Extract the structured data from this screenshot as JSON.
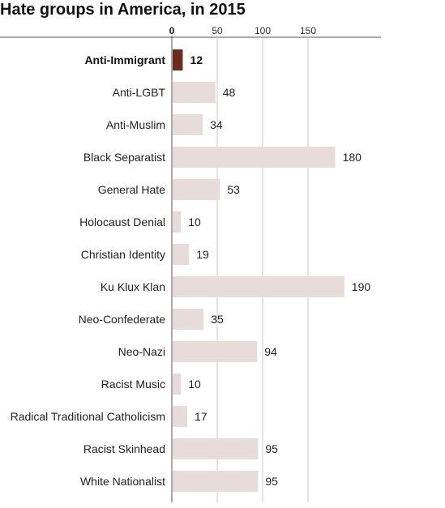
{
  "chart_data": {
    "type": "bar",
    "orientation": "horizontal",
    "title": "Hate groups in America, in 2015",
    "xlabel": "",
    "ylabel": "",
    "xlim": [
      0,
      200
    ],
    "ticks": [
      0,
      50,
      100,
      150
    ],
    "grid": true,
    "highlight": "Anti-Immigrant",
    "colors": {
      "bar": "#e7dcd9",
      "highlight": "#6b2a1c",
      "grid": "#cccccc",
      "axis": "#555555"
    },
    "categories": [
      "Anti-Immigrant",
      "Anti-LGBT",
      "Anti-Muslim",
      "Black Separatist",
      "General Hate",
      "Holocaust Denial",
      "Christian Identity",
      "Ku Klux Klan",
      "Neo-Confederate",
      "Neo-Nazi",
      "Racist Music",
      "Radical Traditional Catholicism",
      "Racist Skinhead",
      "White Nationalist"
    ],
    "values": [
      12,
      48,
      34,
      180,
      53,
      10,
      19,
      190,
      35,
      94,
      10,
      17,
      95,
      95
    ]
  }
}
